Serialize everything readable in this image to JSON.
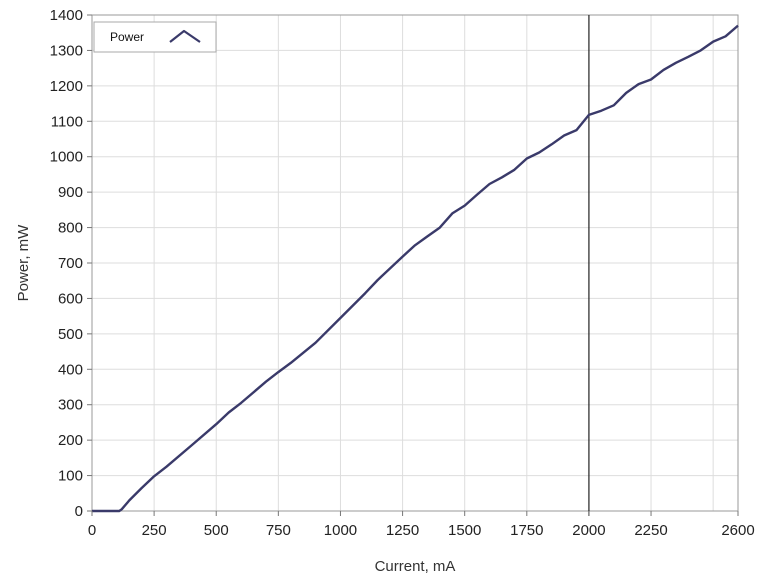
{
  "chart_data": {
    "type": "line",
    "xlabel": "Current, mA",
    "ylabel": "Power, mW",
    "xlim": [
      0,
      2600
    ],
    "ylim": [
      0,
      1400
    ],
    "x_ticks": [
      "0",
      "250",
      "500",
      "750",
      "1000",
      "1250",
      "1500",
      "1750",
      "2000",
      "2250",
      "2600"
    ],
    "x_tick_values": [
      0,
      250,
      500,
      750,
      1000,
      1250,
      1500,
      1750,
      2000,
      2250,
      2600
    ],
    "y_ticks": [
      "0",
      "100",
      "200",
      "300",
      "400",
      "500",
      "600",
      "700",
      "800",
      "900",
      "1000",
      "1100",
      "1200",
      "1300",
      "1400"
    ],
    "y_tick_values": [
      0,
      100,
      200,
      300,
      400,
      500,
      600,
      700,
      800,
      900,
      1000,
      1100,
      1200,
      1300,
      1400
    ],
    "extra_x_grid": [
      2500
    ],
    "grid": true,
    "legend_position": "top-left",
    "cursor_x": 2000,
    "series": [
      {
        "name": "Power",
        "color": "#3a3a6a",
        "x": [
          0,
          110,
          120,
          150,
          200,
          250,
          300,
          400,
          500,
          550,
          600,
          700,
          750,
          800,
          900,
          1000,
          1100,
          1150,
          1250,
          1300,
          1350,
          1400,
          1450,
          1500,
          1550,
          1600,
          1650,
          1700,
          1750,
          1800,
          1850,
          1900,
          1950,
          2000,
          2050,
          2100,
          2150,
          2200,
          2250,
          2300,
          2350,
          2400,
          2450,
          2500,
          2550,
          2600
        ],
        "y": [
          0,
          0,
          5,
          30,
          65,
          98,
          125,
          185,
          245,
          278,
          305,
          365,
          392,
          418,
          475,
          545,
          615,
          652,
          718,
          750,
          775,
          800,
          840,
          862,
          893,
          923,
          942,
          963,
          995,
          1012,
          1035,
          1060,
          1075,
          1118,
          1130,
          1145,
          1180,
          1205,
          1218,
          1245,
          1265,
          1282,
          1300,
          1325,
          1340,
          1370
        ]
      }
    ]
  }
}
